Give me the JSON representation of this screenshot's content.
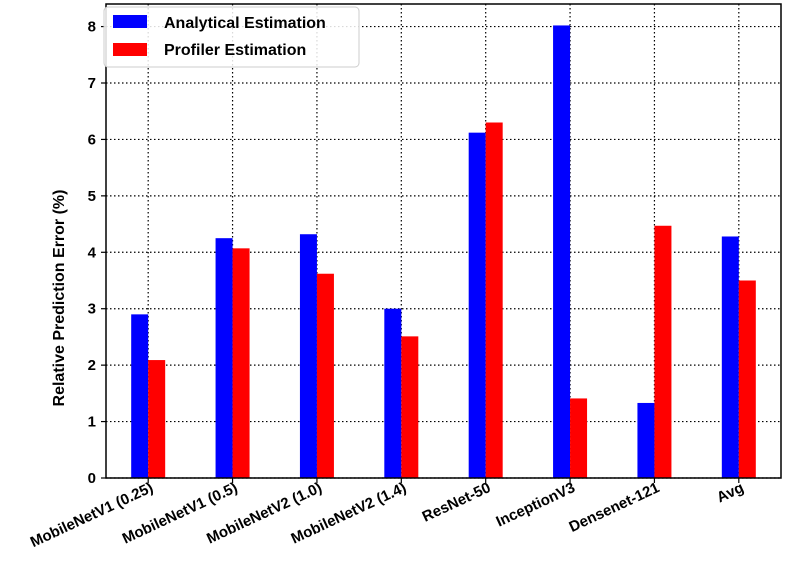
{
  "chart_data": {
    "type": "bar",
    "title": "",
    "xlabel": "",
    "ylabel": "Relative Prediction Error (%)",
    "ylim": [
      0,
      8.4
    ],
    "yticks": [
      "0",
      "1",
      "2",
      "3",
      "4",
      "5",
      "6",
      "7",
      "8"
    ],
    "grid": true,
    "legend_position": "top-left",
    "categories": [
      "MobileNetV1 (0.25)",
      "MobileNetV1 (0.5)",
      "MobileNetV2 (1.0)",
      "MobileNetV2 (1.4)",
      "ResNet-50",
      "InceptionV3",
      "Densenet-121",
      "Avg"
    ],
    "series": [
      {
        "name": "Analytical Estimation",
        "color": "#0000ff",
        "values": [
          2.9,
          4.25,
          4.32,
          3.0,
          6.12,
          8.02,
          1.33,
          4.28
        ]
      },
      {
        "name": "Profiler Estimation",
        "color": "#ff0000",
        "values": [
          2.09,
          4.07,
          3.62,
          2.51,
          6.3,
          1.41,
          4.47,
          3.5
        ]
      }
    ]
  }
}
